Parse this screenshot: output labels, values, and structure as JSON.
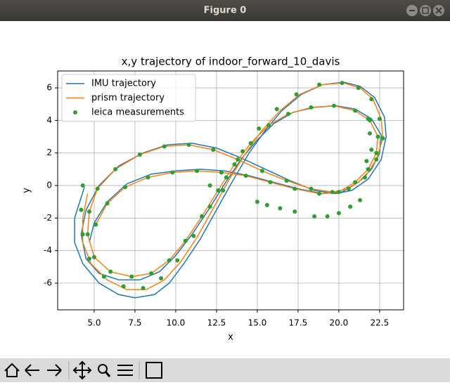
{
  "window": {
    "title": "Figure 0"
  },
  "chart_data": {
    "type": "line",
    "title": "x,y trajectory of indoor_forward_10_davis",
    "x_label": "x",
    "y_label": "y",
    "xlim": [
      2.76,
      23.97
    ],
    "ylim": [
      -7.64,
      7.04
    ],
    "xticks": [
      {
        "value": 5,
        "label": "5.0"
      },
      7.5,
      {
        "value": 10,
        "label": "10.0"
      },
      12.5,
      {
        "value": 15,
        "label": "15.0"
      },
      17.5,
      {
        "value": 20,
        "label": "20.0"
      },
      22.5
    ],
    "yticks": [
      -6,
      -4,
      -2,
      0,
      2,
      4,
      6
    ],
    "grid": true,
    "legend": "upper left",
    "series": [
      {
        "name": "IMU trajectory",
        "type": "line",
        "color": "#1f77b4",
        "x": [
          4.4,
          3.8,
          3.8,
          4.3,
          5.3,
          6.5,
          7.5,
          8.7,
          9.6,
          10.5,
          11.5,
          12.5,
          13.5,
          14.5,
          15.5,
          16.5,
          17.7,
          19,
          20.3,
          21.3,
          22.2,
          22.8,
          22.9,
          22.6,
          21.8,
          20.8,
          19.8,
          18.5,
          17,
          15.5,
          14,
          12.5,
          11,
          9.5,
          8,
          6.5,
          5.3,
          4.5,
          4.2,
          4.5,
          5.3,
          6.5,
          7.8,
          9,
          10,
          11,
          12,
          13,
          14,
          15,
          16,
          17.2,
          18.5,
          19.8,
          21,
          22,
          22.6,
          22.5,
          22,
          21.2,
          20.2,
          19,
          17.5,
          16,
          14.5,
          13,
          11.5,
          10,
          8.5,
          7,
          5.8,
          5,
          4.7
        ],
        "values": [
          -0.1,
          -2,
          -3.5,
          -4.8,
          -6,
          -6.7,
          -6.9,
          -6.7,
          -6,
          -4.8,
          -3.3,
          -1.5,
          0.3,
          2,
          3.4,
          4.6,
          5.6,
          6.2,
          6.35,
          6.1,
          5.4,
          4.2,
          3,
          1.6,
          0.4,
          -0.3,
          -0.5,
          -0.3,
          0.3,
          1,
          1.7,
          2.3,
          2.6,
          2.5,
          2,
          1.2,
          0,
          -1.5,
          -3,
          -4.5,
          -5.4,
          -5.8,
          -5.8,
          -5.3,
          -4.3,
          -3,
          -1.5,
          0.1,
          1.6,
          2.8,
          3.8,
          4.5,
          4.8,
          4.9,
          4.7,
          4.1,
          3.1,
          2,
          1,
          0.2,
          -0.4,
          -0.5,
          -0.2,
          0.2,
          0.6,
          0.9,
          1,
          0.9,
          0.7,
          0.1,
          -1,
          -2.3,
          -3.5
        ]
      },
      {
        "name": "prism trajectory",
        "type": "line",
        "color": "#ff7f0e",
        "x": [
          4.6,
          4.3,
          4.3,
          4.8,
          5.8,
          7,
          8.2,
          9.3,
          10.3,
          11.3,
          12.3,
          13.3,
          14.3,
          15.3,
          16.4,
          17.6,
          19,
          20.3,
          21.3,
          22.1,
          22.6,
          22.7,
          22.3,
          21.6,
          20.6,
          19.6,
          18.3,
          16.8,
          15.3,
          13.8,
          12.3,
          10.8,
          9.3,
          7.8,
          6.3,
          5.2,
          4.7,
          4.6,
          5,
          6,
          7.3,
          8.5,
          9.6,
          10.6,
          11.6,
          12.6,
          13.6,
          14.6,
          15.7,
          16.9,
          18.3,
          19.7,
          21,
          21.9,
          22.4,
          22.3,
          21.8,
          21,
          20,
          18.8,
          17.3,
          15.8,
          14.3,
          12.8,
          11.3,
          9.8,
          8.3,
          6.9,
          5.8,
          5.1
        ],
        "values": [
          -0.5,
          -2,
          -3.5,
          -4.8,
          -5.8,
          -6.4,
          -6.4,
          -5.8,
          -4.7,
          -3.2,
          -1.4,
          0.4,
          2,
          3.4,
          4.6,
          5.6,
          6.2,
          6.3,
          6,
          5.3,
          4.1,
          2.9,
          1.6,
          0.5,
          -0.2,
          -0.4,
          -0.2,
          0.3,
          0.9,
          1.6,
          2.2,
          2.5,
          2.4,
          1.9,
          1,
          -0.2,
          -1.6,
          -3,
          -4.4,
          -5.3,
          -5.6,
          -5.4,
          -4.6,
          -3.4,
          -1.9,
          -0.3,
          1.3,
          2.6,
          3.7,
          4.4,
          4.8,
          4.9,
          4.6,
          4,
          3,
          2,
          1,
          0.2,
          -0.4,
          -0.5,
          -0.2,
          0.2,
          0.6,
          0.8,
          0.9,
          0.8,
          0.5,
          -0.1,
          -1.1,
          -2.4
        ]
      },
      {
        "name": "leica measurements",
        "type": "scatter",
        "color": "#2ca02c",
        "x": [
          4.3,
          4.2,
          4.3,
          4.7,
          5.6,
          6.8,
          8,
          9.1,
          10.1,
          11.1,
          12.1,
          13.1,
          14.1,
          15.1,
          16.2,
          17.4,
          18.8,
          20.2,
          21.2,
          22,
          22.5,
          22.7,
          22.3,
          21.6,
          20.6,
          19.6,
          18.3,
          16.8,
          15.3,
          13.8,
          12.3,
          10.8,
          9.3,
          7.8,
          6.3,
          5.2,
          4.7,
          4.6,
          5,
          6,
          7.3,
          8.5,
          9.6,
          10.6,
          11.6,
          12.6,
          13.6,
          14.6,
          15.7,
          16.9,
          18.3,
          19.7,
          21,
          21.9,
          22.4,
          22.3,
          21.8,
          21,
          20,
          18.8,
          17.3,
          15.8,
          14.3,
          12.8,
          11.3,
          9.8,
          8.3,
          6.9,
          5.8,
          5.1,
          15,
          15.6,
          16.4,
          17.3,
          18.5,
          19.3,
          20,
          20.7,
          21.3,
          12.1,
          12.9,
          21.8,
          21.9,
          22,
          21.7
        ],
        "values": [
          0,
          -1.5,
          -3,
          -4.5,
          -5.6,
          -6.2,
          -6.3,
          -5.7,
          -4.6,
          -3.1,
          -1.3,
          0.5,
          2.1,
          3.5,
          4.7,
          5.6,
          6.2,
          6.3,
          6,
          5.3,
          4.1,
          2.9,
          1.6,
          0.5,
          -0.2,
          -0.4,
          -0.2,
          0.3,
          0.9,
          1.6,
          2.2,
          2.5,
          2.4,
          1.9,
          1,
          -0.2,
          -1.6,
          -3,
          -4.4,
          -5.3,
          -5.6,
          -5.4,
          -4.6,
          -3.4,
          -1.9,
          -0.3,
          1.3,
          2.6,
          3.7,
          4.4,
          4.8,
          4.9,
          4.6,
          4,
          3,
          2,
          1,
          0.2,
          -0.4,
          -0.5,
          -0.2,
          0.2,
          0.6,
          0.8,
          0.9,
          0.8,
          0.5,
          -0.1,
          -1.1,
          -2.4,
          -1,
          -1.2,
          -1.4,
          -1.6,
          -1.9,
          -1.9,
          -1.7,
          -1.3,
          -0.9,
          0,
          -0.3,
          4.1,
          3.2,
          2.2,
          1.5
        ]
      }
    ]
  }
}
